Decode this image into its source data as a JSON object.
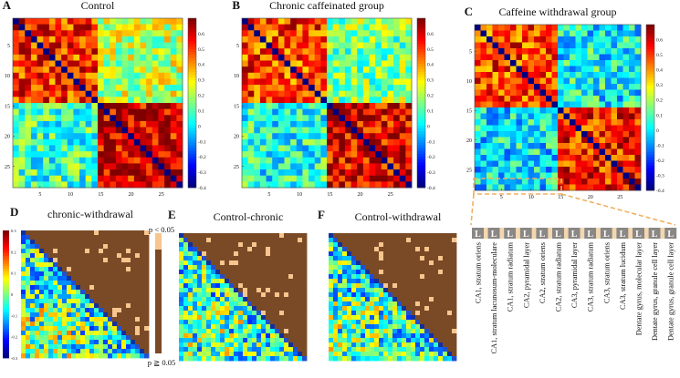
{
  "chart_data": [
    {
      "type": "heatmap",
      "panel_letter": "A",
      "title": "Control",
      "x_ticks": [
        5,
        10,
        15,
        20,
        25
      ],
      "y_ticks": [
        5,
        10,
        15,
        20,
        25
      ],
      "n": 28,
      "block_boundary": 14,
      "colorbar_ticks": [
        0.6,
        0.5,
        0.4,
        0.3,
        0.2,
        0.1,
        0,
        -0.1,
        -0.2,
        -0.3,
        -0.4
      ],
      "value_range": [
        -0.4,
        0.7
      ],
      "block_means": {
        "top_left": 0.52,
        "top_right": 0.22,
        "bottom_left": 0.08,
        "bottom_right": 0.6
      }
    },
    {
      "type": "heatmap",
      "panel_letter": "B",
      "title": "Chronic caffeinated group",
      "x_ticks": [
        5,
        10,
        15,
        20,
        25
      ],
      "y_ticks": [
        5,
        10,
        15,
        20,
        25
      ],
      "n": 28,
      "block_boundary": 14,
      "colorbar_ticks": [
        0.6,
        0.5,
        0.4,
        0.3,
        0.2,
        0.1,
        0,
        -0.1,
        -0.2,
        -0.3,
        -0.4
      ],
      "value_range": [
        -0.4,
        0.7
      ],
      "block_means": {
        "top_left": 0.5,
        "top_right": 0.15,
        "bottom_left": 0.05,
        "bottom_right": 0.6
      }
    },
    {
      "type": "heatmap",
      "panel_letter": "C",
      "title": "Caffeine withdrawal group",
      "x_ticks": [
        5,
        10,
        15,
        20,
        25
      ],
      "y_ticks": [
        5,
        10,
        15,
        20,
        25
      ],
      "n": 28,
      "block_boundary": 14,
      "colorbar_ticks": [
        0.6,
        0.5,
        0.4,
        0.3,
        0.2,
        0.1,
        0,
        -0.1,
        -0.2,
        -0.3,
        -0.4
      ],
      "value_range": [
        -0.4,
        0.7
      ],
      "block_means": {
        "top_left": 0.5,
        "top_right": 0.02,
        "bottom_left": 0.0,
        "bottom_right": 0.55
      }
    },
    {
      "type": "heatmap",
      "panel_letter": "D",
      "title": "chronic-withdrawal",
      "colorbar_ticks": [
        0.3,
        0.2,
        0.1,
        0,
        -0.1,
        -0.2,
        -0.3
      ],
      "value_range": [
        -0.3,
        0.3
      ]
    },
    {
      "type": "heatmap",
      "panel_letter": "E",
      "title": "Control-chronic"
    },
    {
      "type": "heatmap",
      "panel_letter": "F",
      "title": "Control-withdrawal"
    }
  ],
  "significance_legend": {
    "sig_label": "p < 0.05",
    "nonsig_label": "p ≧ 0.05",
    "sig_color": "#f7c58e",
    "nonsig_color": "#7a4a26"
  },
  "hemisphere_letter": "L",
  "regions": [
    "CA1, stratum oriens",
    "CA1, stratum lacunosum-moleculare",
    "CA1, stratum radiatum",
    "CA2, pyramidal layer",
    "CA2, stratum oriens",
    "CA2, stratum radiatum",
    "CA3, pyramidal layer",
    "CA3, stratum radiatum",
    "CA3, stratum oriens",
    "CA3, stratum lucidum",
    "Dentate gyrus, molecular layer",
    "Dentate gyrus, granule cell layer",
    "Dentate gyrus, granule cell layer"
  ]
}
